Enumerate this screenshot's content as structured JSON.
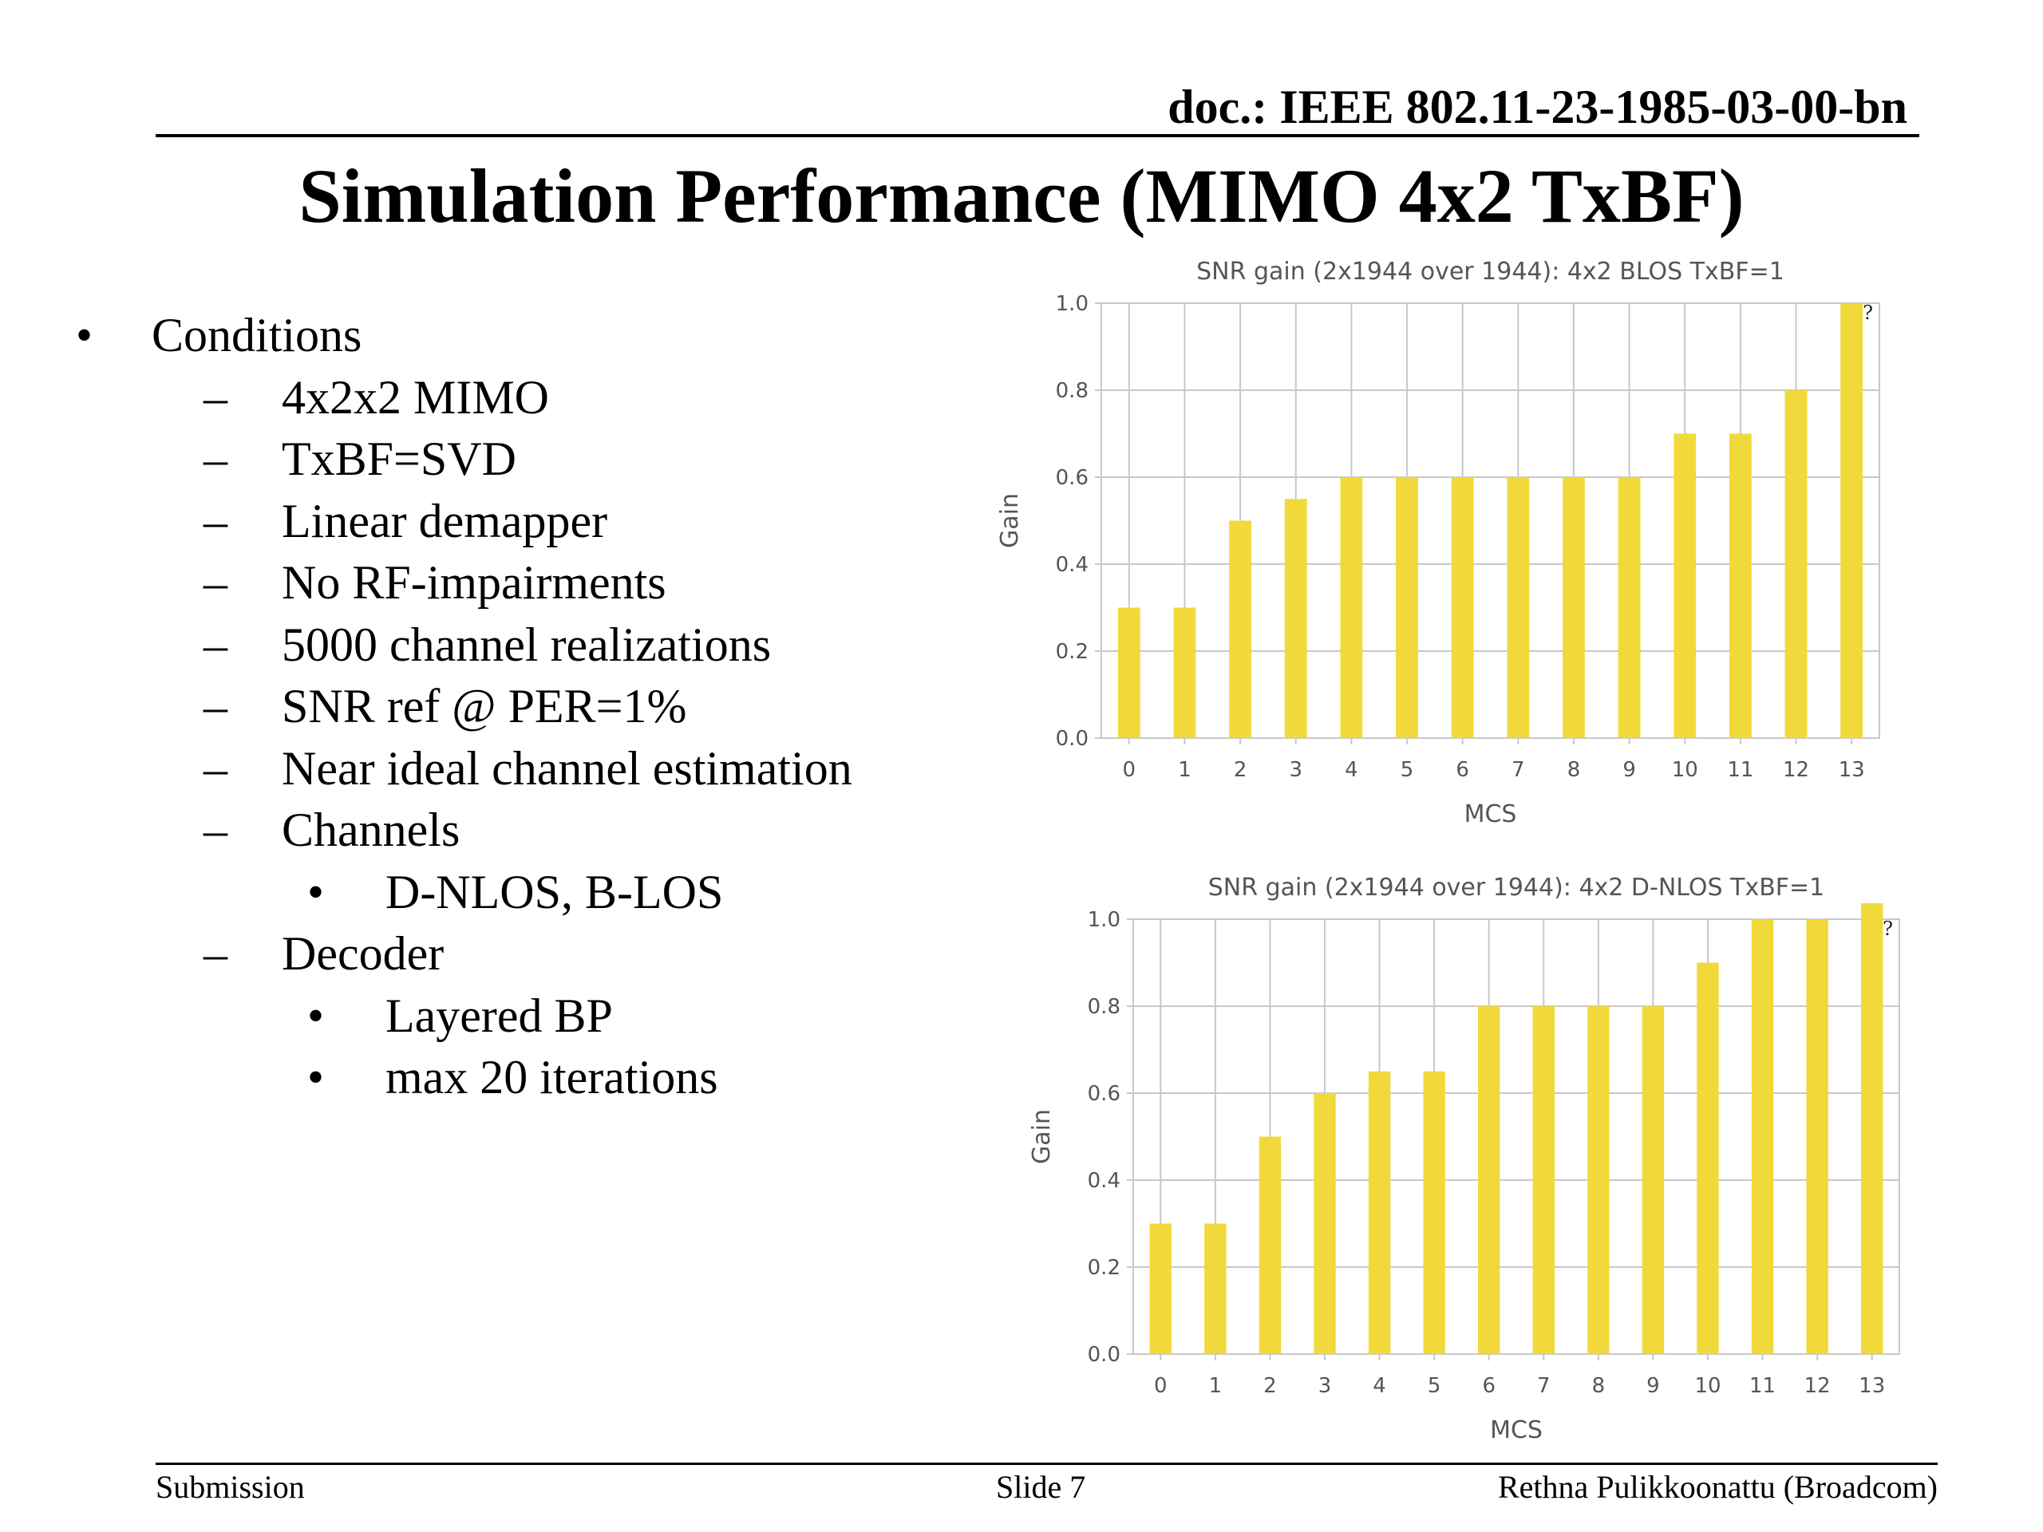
{
  "header": {
    "doc_id": "doc.: IEEE 802.11-23-1985-03-00-bn"
  },
  "title": "Simulation Performance (MIMO 4x2 TxBF)",
  "conditions": {
    "heading_bullet": "•",
    "heading": "Conditions",
    "dash": "–",
    "sub_bullet": "•",
    "items": [
      "4x2x2 MIMO",
      "TxBF=SVD",
      "Linear demapper",
      "No RF-impairments",
      "5000 channel realizations",
      "SNR ref @ PER=1%",
      "Near ideal channel estimation",
      "Channels",
      "D-NLOS, B-LOS",
      "Decoder",
      "Layered BP",
      "max 20 iterations"
    ]
  },
  "chart_data": [
    {
      "type": "bar",
      "title": "SNR gain (2x1944 over 1944): 4x2 BLOS TxBF=1",
      "xlabel": "MCS",
      "ylabel": "Gain",
      "categories": [
        "0",
        "1",
        "2",
        "3",
        "4",
        "5",
        "6",
        "7",
        "8",
        "9",
        "10",
        "11",
        "12",
        "13"
      ],
      "values": [
        0.3,
        0.3,
        0.5,
        0.55,
        0.6,
        0.6,
        0.6,
        0.6,
        0.6,
        0.6,
        0.7,
        0.7,
        0.8,
        1.0
      ],
      "ylim": [
        0,
        1.0
      ],
      "yticks": [
        "0.0",
        "0.2",
        "0.4",
        "0.6",
        "0.8",
        "1.0"
      ],
      "grid": true,
      "help_mark": "?",
      "bar_color": "#f2d93b"
    },
    {
      "type": "bar",
      "title": "SNR gain (2x1944 over 1944): 4x2 D-NLOS TxBF=1",
      "xlabel": "MCS",
      "ylabel": "Gain",
      "categories": [
        "0",
        "1",
        "2",
        "3",
        "4",
        "5",
        "6",
        "7",
        "8",
        "9",
        "10",
        "11",
        "12",
        "13"
      ],
      "values": [
        0.3,
        0.3,
        0.5,
        0.6,
        0.65,
        0.65,
        0.8,
        0.8,
        0.8,
        0.8,
        0.9,
        1.0,
        1.0,
        1.05
      ],
      "ylim": [
        0,
        1.0
      ],
      "yticks": [
        "0.0",
        "0.2",
        "0.4",
        "0.6",
        "0.8",
        "1.0"
      ],
      "grid": true,
      "help_mark": "?",
      "bar_color": "#f2d93b"
    }
  ],
  "footer": {
    "left": "Submission",
    "center": "Slide 7",
    "right": "Rethna Pulikkoonattu (Broadcom)"
  }
}
